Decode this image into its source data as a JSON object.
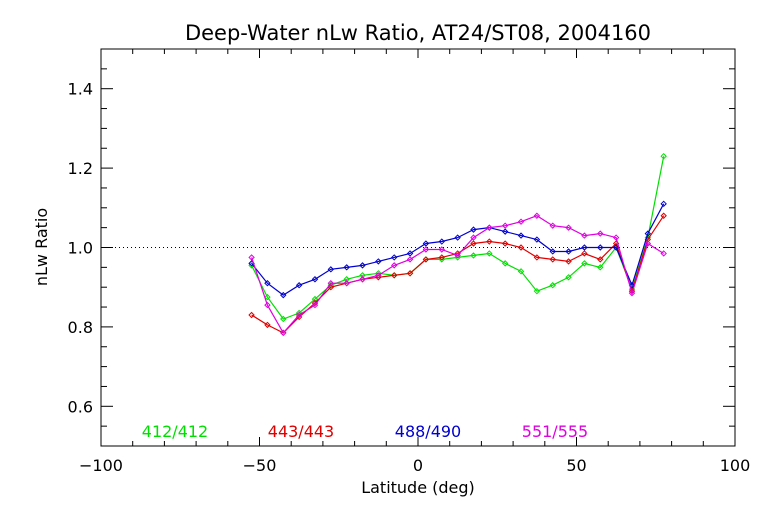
{
  "chart_data": {
    "type": "line",
    "title": "Deep-Water nLw Ratio, AT24/ST08, 2004160",
    "xlabel": "Latitude (deg)",
    "ylabel": "nLw Ratio",
    "xlim": [
      -100,
      100
    ],
    "ylim": [
      0.5,
      1.5
    ],
    "x_ticks": [
      -100,
      -50,
      0,
      50,
      100
    ],
    "x_tick_labels": [
      "−100",
      "−50",
      "0",
      "50",
      "100"
    ],
    "y_ticks": [
      0.6,
      0.8,
      1.0,
      1.2,
      1.4
    ],
    "y_tick_labels": [
      "0.6",
      "0.8",
      "1.0",
      "1.2",
      "1.4"
    ],
    "reference_line": 1.0,
    "grid": false,
    "legend_placement": "bottom-inside",
    "x": [
      -52.5,
      -47.5,
      -42.5,
      -37.5,
      -32.5,
      -27.5,
      -22.5,
      -17.5,
      -12.5,
      -7.5,
      -2.5,
      2.5,
      7.5,
      12.5,
      17.5,
      22.5,
      27.5,
      32.5,
      37.5,
      42.5,
      47.5,
      52.5,
      57.5,
      62.5,
      67.5,
      72.5,
      77.5
    ],
    "series": [
      {
        "name": "412/412",
        "color": "#00e000",
        "values": [
          0.955,
          0.875,
          0.82,
          0.835,
          0.87,
          0.905,
          0.92,
          0.93,
          0.935,
          0.93,
          0.935,
          0.97,
          0.97,
          0.975,
          0.98,
          0.985,
          0.96,
          0.94,
          0.89,
          0.905,
          0.925,
          0.96,
          0.95,
          1.0,
          0.895,
          1.025,
          1.23
        ]
      },
      {
        "name": "443/443",
        "color": "#e00000",
        "values": [
          0.83,
          0.805,
          0.785,
          0.825,
          0.86,
          0.9,
          0.91,
          0.92,
          0.925,
          0.93,
          0.935,
          0.97,
          0.975,
          0.985,
          1.01,
          1.015,
          1.01,
          1.0,
          0.975,
          0.97,
          0.965,
          0.985,
          0.97,
          1.01,
          0.89,
          1.02,
          1.08
        ]
      },
      {
        "name": "488/490",
        "color": "#0000d0",
        "values": [
          0.96,
          0.91,
          0.88,
          0.905,
          0.92,
          0.945,
          0.95,
          0.955,
          0.965,
          0.975,
          0.985,
          1.01,
          1.015,
          1.025,
          1.045,
          1.05,
          1.04,
          1.03,
          1.02,
          0.99,
          0.99,
          1.0,
          1.0,
          1.0,
          0.905,
          1.035,
          1.11
        ]
      },
      {
        "name": "551/555",
        "color": "#e000e0",
        "values": [
          0.975,
          0.855,
          0.785,
          0.83,
          0.855,
          0.91,
          0.91,
          0.92,
          0.93,
          0.955,
          0.97,
          0.995,
          0.995,
          0.98,
          1.025,
          1.05,
          1.055,
          1.065,
          1.08,
          1.055,
          1.05,
          1.03,
          1.035,
          1.025,
          0.885,
          1.01,
          0.985
        ]
      }
    ]
  }
}
